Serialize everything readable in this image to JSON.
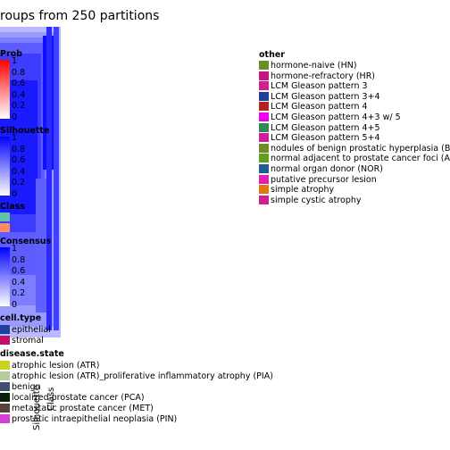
{
  "chart_data": {
    "type": "heatmap",
    "title": "roups from 250 partitions",
    "matrix_label": "Consensus",
    "column_annotation_labels": [
      "Silhouette",
      "Class"
    ],
    "legends": {
      "prob": {
        "title": "Prob",
        "ticks": [
          "1",
          "0.8",
          "0.6",
          "0.4",
          "0.2",
          "0"
        ],
        "colors": [
          "#ff0000",
          "#ffffff"
        ]
      },
      "silhouette": {
        "title": "Silhouette",
        "ticks": [
          "1",
          "0.8",
          "0.6",
          "0.4",
          "0.2",
          "0"
        ],
        "colors": [
          "#0000ff",
          "#ffffff"
        ]
      },
      "class": {
        "title": "Class",
        "items": [
          {
            "label": "",
            "color": "#66c2a5"
          },
          {
            "label": "",
            "color": "#fc8d62"
          }
        ]
      },
      "consensus": {
        "title": "Consensus",
        "ticks": [
          "1",
          "0.8",
          "0.6",
          "0.4",
          "0.2",
          "0"
        ],
        "colors": [
          "#0000ff",
          "#ffffff"
        ]
      },
      "cell_type": {
        "title": "cell.type",
        "items": [
          {
            "label": "epithelial",
            "color": "#1f3f9a"
          },
          {
            "label": "stromal",
            "color": "#c0106a"
          }
        ]
      },
      "disease_state": {
        "title": "disease.state",
        "items": [
          {
            "label": "atrophic lesion (ATR)",
            "color": "#c8d41e"
          },
          {
            "label": "atrophic lesion (ATR)_proliferative inflammatory atrophy (PIA)",
            "color": "#b7c9a0"
          },
          {
            "label": "benign",
            "color": "#3f4f6f"
          },
          {
            "label": "localized prostate cancer (PCA)",
            "color": "#0a1f0a"
          },
          {
            "label": "metastatic prostate cancer  (MET)",
            "color": "#5a3f3a"
          },
          {
            "label": "prostatic intraepithelial neoplasia (PIN)",
            "color": "#d43fd4"
          }
        ]
      },
      "other": {
        "title": "other",
        "items": [
          {
            "label": "hormone-naive  (HN)",
            "color": "#6b8e23"
          },
          {
            "label": "hormone-refractory (HR)",
            "color": "#c71585"
          },
          {
            "label": "LCM Gleason pattern 3",
            "color": "#d02090"
          },
          {
            "label": "LCM Gleason pattern 3+4",
            "color": "#1f3f9a"
          },
          {
            "label": "LCM Gleason pattern 4",
            "color": "#b22222"
          },
          {
            "label": "LCM Gleason pattern 4+3 w/ 5",
            "color": "#ee00ee"
          },
          {
            "label": "LCM Gleason pattern 4+5",
            "color": "#2e8b57"
          },
          {
            "label": "LCM Gleason pattern 5+4",
            "color": "#cd1d9a"
          },
          {
            "label": "nodules of benign prostatic hyperplasia  (BPH)",
            "color": "#6b8e23"
          },
          {
            "label": "normal adjacent to prostate cancer foci (ADJ)",
            "color": "#5f9f1f"
          },
          {
            "label": "normal organ donor (NOR)",
            "color": "#1f5f8a"
          },
          {
            "label": "putative precursor lesion",
            "color": "#e020b0"
          },
          {
            "label": "simple atrophy",
            "color": "#e07a10"
          },
          {
            "label": "simple cystic atrophy",
            "color": "#d02090"
          }
        ]
      }
    }
  }
}
